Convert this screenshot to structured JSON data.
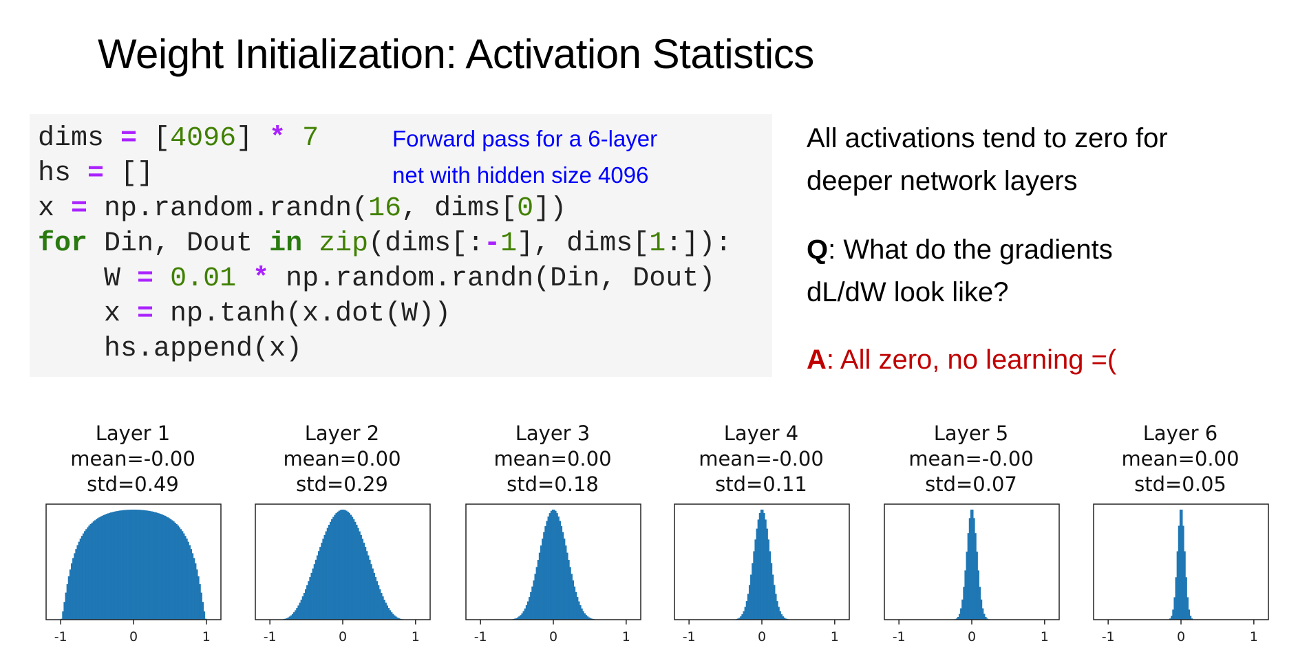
{
  "title": "Weight Initialization: Activation Statistics",
  "code": {
    "lines": [
      [
        [
          "dims ",
          ""
        ],
        [
          "=",
          "op"
        ],
        [
          " [",
          ""
        ],
        [
          "4096",
          "num"
        ],
        [
          "] ",
          ""
        ],
        [
          "*",
          "op"
        ],
        [
          " ",
          ""
        ],
        [
          "7",
          "num"
        ]
      ],
      [
        [
          "hs ",
          ""
        ],
        [
          "=",
          "op"
        ],
        [
          " []",
          ""
        ]
      ],
      [
        [
          "x ",
          ""
        ],
        [
          "=",
          "op"
        ],
        [
          " np.random.randn(",
          ""
        ],
        [
          "16",
          "num"
        ],
        [
          ", dims[",
          ""
        ],
        [
          "0",
          "num"
        ],
        [
          "])",
          ""
        ]
      ],
      [
        [
          "for",
          "kw"
        ],
        [
          " Din, Dout ",
          ""
        ],
        [
          "in",
          "kw"
        ],
        [
          " ",
          ""
        ],
        [
          "zip",
          "fn"
        ],
        [
          "(dims[:",
          ""
        ],
        [
          "-",
          "op"
        ],
        [
          "1",
          "num"
        ],
        [
          "], dims[",
          ""
        ],
        [
          "1",
          "num"
        ],
        [
          ":]):",
          ""
        ]
      ],
      [
        [
          "    W ",
          ""
        ],
        [
          "=",
          "op"
        ],
        [
          " ",
          ""
        ],
        [
          "0.01",
          "num"
        ],
        [
          " ",
          ""
        ],
        [
          "*",
          "op"
        ],
        [
          " np.random.randn(Din, Dout)",
          ""
        ]
      ],
      [
        [
          "    x ",
          ""
        ],
        [
          "=",
          "op"
        ],
        [
          " np.tanh(x.dot(W))",
          ""
        ]
      ],
      [
        [
          "    hs.append(x)",
          ""
        ]
      ]
    ],
    "annotation": [
      "Forward pass for a 6-layer",
      "net with hidden size 4096"
    ]
  },
  "side": {
    "statement": [
      "All activations tend to zero for",
      "deeper network layers"
    ],
    "q_label": "Q",
    "question": [
      ": What do the gradients",
      "dL/dW look like?"
    ],
    "a_label": "A",
    "answer": ": All zero, no learning =("
  },
  "colors": {
    "bar": "#1f77b4",
    "answer": "#c00000",
    "annotation": "#0000ff"
  },
  "chart_data": [
    {
      "type": "bar",
      "title": "Layer 1",
      "mean_label": "mean=-0.00",
      "std_label": "std=0.49",
      "mean": 0.0,
      "std": 0.49,
      "xlim": [
        -1.2,
        1.2
      ],
      "xticks": [
        "-1",
        "0",
        "1"
      ],
      "activation": "tanh"
    },
    {
      "type": "bar",
      "title": "Layer 2",
      "mean_label": "mean=0.00",
      "std_label": "std=0.29",
      "mean": 0.0,
      "std": 0.29,
      "xlim": [
        -1.2,
        1.2
      ],
      "xticks": [
        "-1",
        "0",
        "1"
      ],
      "activation": "tanh"
    },
    {
      "type": "bar",
      "title": "Layer 3",
      "mean_label": "mean=0.00",
      "std_label": "std=0.18",
      "mean": 0.0,
      "std": 0.18,
      "xlim": [
        -1.2,
        1.2
      ],
      "xticks": [
        "-1",
        "0",
        "1"
      ],
      "activation": "tanh"
    },
    {
      "type": "bar",
      "title": "Layer 4",
      "mean_label": "mean=-0.00",
      "std_label": "std=0.11",
      "mean": 0.0,
      "std": 0.11,
      "xlim": [
        -1.2,
        1.2
      ],
      "xticks": [
        "-1",
        "0",
        "1"
      ],
      "activation": "tanh"
    },
    {
      "type": "bar",
      "title": "Layer 5",
      "mean_label": "mean=-0.00",
      "std_label": "std=0.07",
      "mean": 0.0,
      "std": 0.07,
      "xlim": [
        -1.2,
        1.2
      ],
      "xticks": [
        "-1",
        "0",
        "1"
      ],
      "activation": "tanh"
    },
    {
      "type": "bar",
      "title": "Layer 6",
      "mean_label": "mean=0.00",
      "std_label": "std=0.05",
      "mean": 0.0,
      "std": 0.05,
      "xlim": [
        -1.2,
        1.2
      ],
      "xticks": [
        "-1",
        "0",
        "1"
      ],
      "activation": "tanh"
    }
  ]
}
